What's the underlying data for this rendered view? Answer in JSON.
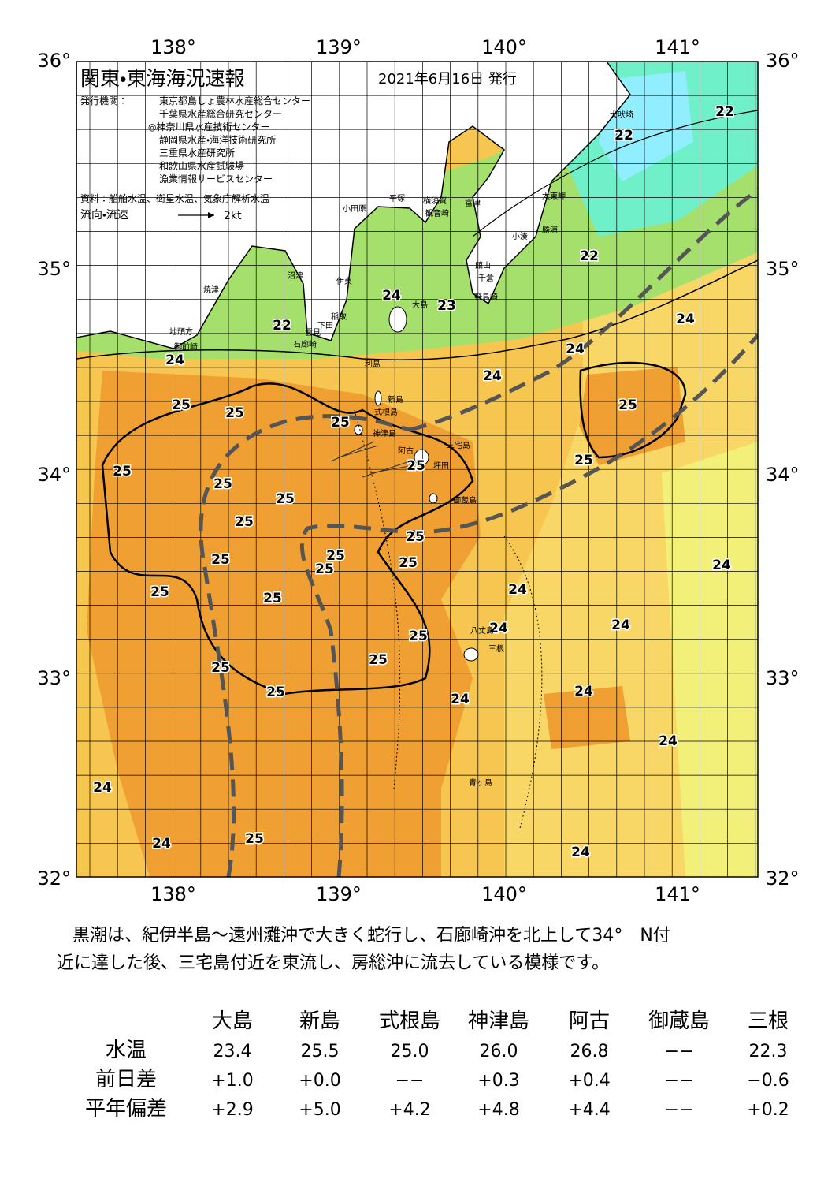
{
  "map": {
    "title": "関東・東海海況速報",
    "date": "2021年6月16日 発行",
    "issuers_label": "発行機関：",
    "issuers": [
      "東京都島しょ農林水産総合センター",
      "千葉県水産総合研究センター",
      "◎神奈川県水産技術センター",
      "静岡県水産・海洋技術研究所",
      "三重県水産研究所",
      "和歌山県水産試験場",
      "漁業情報サービスセンター"
    ],
    "source": "資料：船舶水温、衛星水温、気象庁解析水温",
    "legend": "流向・流速",
    "legend_scale": "2kt",
    "lon_labels": [
      "138°",
      "139°",
      "140°",
      "141°"
    ],
    "lat_labels": [
      "36°",
      "35°",
      "34°",
      "33°",
      "32°"
    ],
    "temperature_labels": [
      "22",
      "22",
      "22",
      "23",
      "24",
      "22",
      "24",
      "24",
      "24",
      "24",
      "25",
      "25",
      "25",
      "25",
      "25",
      "25",
      "25",
      "25",
      "25",
      "25",
      "25",
      "25",
      "25",
      "25",
      "25",
      "25",
      "24",
      "24",
      "24",
      "24",
      "25",
      "25",
      "25",
      "25",
      "24",
      "24",
      "24",
      "24",
      "24",
      "25",
      "24",
      "25"
    ],
    "place_names": [
      "小田原",
      "平塚",
      "横須賀",
      "観音崎",
      "富津",
      "館山",
      "千倉",
      "野島崎",
      "小湊",
      "勝浦",
      "太東岬",
      "犬吠埼",
      "沼津",
      "伊東",
      "焼津",
      "地頭方",
      "御前崎",
      "稲取",
      "下田",
      "雲見",
      "石廊崎",
      "大島",
      "利島",
      "新島",
      "式根島",
      "神津島",
      "三宅島",
      "阿古",
      "坪田",
      "御蔵島",
      "八丈島",
      "三根",
      "青ヶ島"
    ]
  },
  "summary": [
    "黒潮は、紀伊半島～遠州灘沖で大きく蛇行し、石廊崎沖を北上して34°　N付",
    "近に達した後、三宅島付近を東流し、房総沖に流去している模様です。"
  ],
  "table": {
    "columns": [
      "大島",
      "新島",
      "式根島",
      "神津島",
      "阿古",
      "御蔵島",
      "三根"
    ],
    "rows": [
      {
        "label": "水温",
        "cells": [
          "23.4",
          "25.5",
          "25.0",
          "26.0",
          "26.8",
          "−−",
          "22.3"
        ]
      },
      {
        "label": "前日差",
        "cells": [
          "+1.0",
          "+0.0",
          "−−",
          "+0.3",
          "+0.4",
          "−−",
          "−0.6"
        ]
      },
      {
        "label": "平年偏差",
        "cells": [
          "+2.9",
          "+5.0",
          "+4.2",
          "+4.8",
          "+4.4",
          "−−",
          "+0.2"
        ]
      }
    ]
  }
}
